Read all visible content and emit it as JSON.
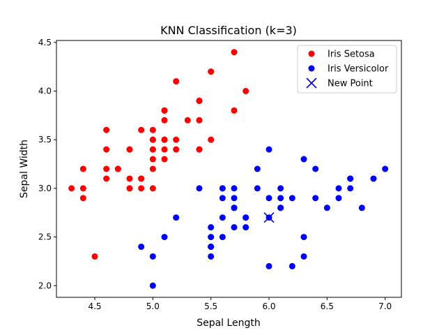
{
  "chart_data": {
    "type": "scatter",
    "title": "KNN Classification (k=3)",
    "xlabel": "Sepal Length",
    "ylabel": "Sepal Width",
    "xlim": [
      4.17,
      7.14
    ],
    "ylim": [
      1.88,
      4.52
    ],
    "xticks": [
      "4.5",
      "5.0",
      "5.5",
      "6.0",
      "6.5",
      "7.0"
    ],
    "yticks": [
      "2.0",
      "2.5",
      "3.0",
      "3.5",
      "4.0",
      "4.5"
    ],
    "legend_position": "top-right",
    "series": [
      {
        "name": "Iris Setosa",
        "color": "#ff0000",
        "marker": "circle",
        "points": [
          [
            5.1,
            3.5
          ],
          [
            4.9,
            3.0
          ],
          [
            4.7,
            3.2
          ],
          [
            4.6,
            3.1
          ],
          [
            5.0,
            3.6
          ],
          [
            5.4,
            3.9
          ],
          [
            4.6,
            3.4
          ],
          [
            5.0,
            3.4
          ],
          [
            4.4,
            2.9
          ],
          [
            4.9,
            3.1
          ],
          [
            5.4,
            3.7
          ],
          [
            4.8,
            3.4
          ],
          [
            4.8,
            3.0
          ],
          [
            4.3,
            3.0
          ],
          [
            5.8,
            4.0
          ],
          [
            5.7,
            4.4
          ],
          [
            5.4,
            3.9
          ],
          [
            5.1,
            3.5
          ],
          [
            5.7,
            3.8
          ],
          [
            5.1,
            3.8
          ],
          [
            5.4,
            3.4
          ],
          [
            5.1,
            3.7
          ],
          [
            4.6,
            3.6
          ],
          [
            5.1,
            3.3
          ],
          [
            4.8,
            3.4
          ],
          [
            5.0,
            3.0
          ],
          [
            5.0,
            3.4
          ],
          [
            5.2,
            3.5
          ],
          [
            5.2,
            3.4
          ],
          [
            4.7,
            3.2
          ],
          [
            4.8,
            3.1
          ],
          [
            5.4,
            3.4
          ],
          [
            5.2,
            4.1
          ],
          [
            5.5,
            4.2
          ],
          [
            4.9,
            3.1
          ],
          [
            5.0,
            3.2
          ],
          [
            5.5,
            3.5
          ],
          [
            4.9,
            3.6
          ],
          [
            4.4,
            3.0
          ],
          [
            5.1,
            3.4
          ],
          [
            5.0,
            3.5
          ],
          [
            4.5,
            2.3
          ],
          [
            4.4,
            3.2
          ],
          [
            5.0,
            3.5
          ],
          [
            5.1,
            3.8
          ],
          [
            4.8,
            3.0
          ],
          [
            5.1,
            3.8
          ],
          [
            4.6,
            3.2
          ],
          [
            5.3,
            3.7
          ],
          [
            5.0,
            3.3
          ]
        ]
      },
      {
        "name": "Iris Versicolor",
        "color": "#0000ff",
        "marker": "circle",
        "points": [
          [
            7.0,
            3.2
          ],
          [
            6.4,
            3.2
          ],
          [
            6.9,
            3.1
          ],
          [
            5.5,
            2.3
          ],
          [
            6.5,
            2.8
          ],
          [
            5.7,
            2.8
          ],
          [
            6.3,
            3.3
          ],
          [
            4.9,
            2.4
          ],
          [
            6.6,
            2.9
          ],
          [
            5.2,
            2.7
          ],
          [
            5.0,
            2.0
          ],
          [
            5.9,
            3.0
          ],
          [
            6.0,
            2.2
          ],
          [
            6.1,
            2.9
          ],
          [
            5.6,
            2.9
          ],
          [
            6.7,
            3.1
          ],
          [
            5.6,
            3.0
          ],
          [
            5.8,
            2.7
          ],
          [
            6.2,
            2.2
          ],
          [
            5.6,
            2.5
          ],
          [
            5.9,
            3.2
          ],
          [
            6.1,
            2.8
          ],
          [
            6.3,
            2.5
          ],
          [
            6.1,
            2.8
          ],
          [
            6.4,
            2.9
          ],
          [
            6.6,
            3.0
          ],
          [
            6.8,
            2.8
          ],
          [
            6.7,
            3.0
          ],
          [
            6.0,
            2.9
          ],
          [
            5.7,
            2.6
          ],
          [
            5.5,
            2.4
          ],
          [
            5.5,
            2.4
          ],
          [
            5.8,
            2.7
          ],
          [
            6.0,
            2.7
          ],
          [
            5.4,
            3.0
          ],
          [
            6.0,
            3.4
          ],
          [
            6.7,
            3.1
          ],
          [
            6.3,
            2.3
          ],
          [
            5.6,
            3.0
          ],
          [
            5.5,
            2.5
          ],
          [
            5.5,
            2.6
          ],
          [
            6.1,
            3.0
          ],
          [
            5.8,
            2.6
          ],
          [
            5.0,
            2.3
          ],
          [
            5.6,
            2.7
          ],
          [
            5.7,
            3.0
          ],
          [
            5.7,
            2.9
          ],
          [
            6.2,
            2.9
          ],
          [
            5.1,
            2.5
          ],
          [
            5.7,
            2.8
          ]
        ]
      },
      {
        "name": "New Point",
        "color": "#0000cc",
        "marker": "x",
        "points": [
          [
            6.0,
            2.7
          ]
        ]
      }
    ]
  }
}
